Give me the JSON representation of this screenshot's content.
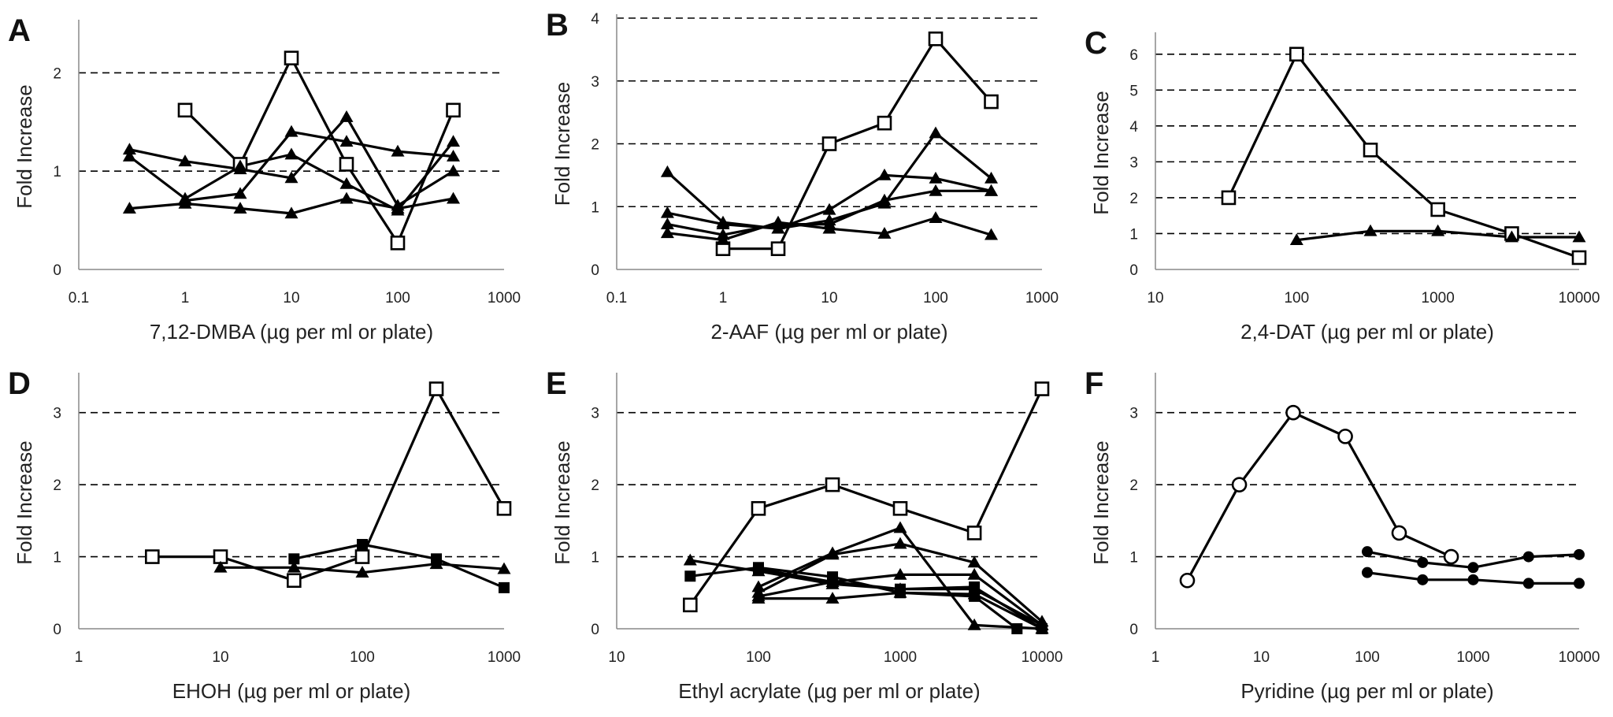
{
  "chart_data": [
    {
      "type": "line",
      "panel": "A",
      "xlabel": "7,12-DMBA (µg per ml or plate)",
      "ylabel": "Fold Increase",
      "xscale": "log",
      "xlim": [
        0.1,
        1000
      ],
      "ylim": [
        0,
        2.5
      ],
      "xticks": [
        0.1,
        1,
        10,
        100,
        1000
      ],
      "xtick_labels": [
        "0.1",
        "1",
        "10",
        "100",
        "1000"
      ],
      "yticks": [
        0,
        1,
        2
      ],
      "ytick_labels": [
        "0",
        "1",
        "2"
      ],
      "hlines": [
        1,
        2
      ],
      "series": [
        {
          "marker": "open-square",
          "x": [
            1,
            3.3,
            10,
            33,
            100,
            333
          ],
          "y": [
            1.62,
            1.07,
            2.15,
            1.07,
            0.27,
            1.62
          ]
        },
        {
          "marker": "triangle",
          "x": [
            0.3,
            1,
            3.3,
            10,
            33,
            100,
            333
          ],
          "y": [
            1.22,
            1.1,
            1.02,
            0.93,
            1.55,
            0.65,
            1.0
          ]
        },
        {
          "marker": "triangle",
          "x": [
            0.3,
            1,
            3.3,
            10,
            33,
            100,
            333
          ],
          "y": [
            1.15,
            0.72,
            1.05,
            1.17,
            0.87,
            0.6,
            1.3
          ]
        },
        {
          "marker": "triangle",
          "x": [
            1,
            3.3,
            10,
            33,
            100,
            333
          ],
          "y": [
            0.7,
            0.77,
            1.4,
            1.3,
            1.2,
            1.15
          ]
        },
        {
          "marker": "triangle",
          "x": [
            0.3,
            1,
            3.3,
            10,
            33,
            100,
            333
          ],
          "y": [
            0.62,
            0.67,
            0.62,
            0.57,
            0.72,
            0.62,
            0.72
          ]
        }
      ]
    },
    {
      "type": "line",
      "panel": "B",
      "xlabel": "2-AAF (µg per ml or plate)",
      "ylabel": "Fold Increase",
      "xscale": "log",
      "xlim": [
        0.1,
        1000
      ],
      "ylim": [
        0,
        4
      ],
      "xticks": [
        0.1,
        1,
        10,
        100,
        1000
      ],
      "xtick_labels": [
        "0.1",
        "1",
        "10",
        "100",
        "1000"
      ],
      "yticks": [
        0,
        1,
        2,
        3,
        4
      ],
      "ytick_labels": [
        "0",
        "1",
        "2",
        "3",
        "4"
      ],
      "hlines": [
        1,
        2,
        3,
        4
      ],
      "series": [
        {
          "marker": "open-square",
          "x": [
            1,
            3.3,
            10,
            33,
            100,
            333
          ],
          "y": [
            0.33,
            0.33,
            2.0,
            2.33,
            3.67,
            2.67
          ]
        },
        {
          "marker": "triangle",
          "x": [
            0.3,
            1,
            3.3,
            10,
            33,
            100,
            333
          ],
          "y": [
            1.55,
            0.75,
            0.65,
            0.78,
            1.05,
            2.17,
            1.45
          ]
        },
        {
          "marker": "triangle",
          "x": [
            0.3,
            1,
            3.3,
            10,
            33,
            100,
            333
          ],
          "y": [
            0.9,
            0.72,
            0.65,
            0.95,
            1.5,
            1.45,
            1.25
          ]
        },
        {
          "marker": "triangle",
          "x": [
            0.3,
            1,
            3.3,
            10,
            33,
            100,
            333
          ],
          "y": [
            0.72,
            0.55,
            0.72,
            0.72,
            1.1,
            1.25,
            1.25
          ]
        },
        {
          "marker": "triangle",
          "x": [
            0.3,
            1,
            3.3,
            10,
            33,
            100,
            333
          ],
          "y": [
            0.58,
            0.47,
            0.75,
            0.65,
            0.57,
            0.82,
            0.55
          ]
        }
      ]
    },
    {
      "type": "line",
      "panel": "C",
      "xlabel": "2,4-DAT (µg per ml or plate)",
      "ylabel": "Fold Increase",
      "xscale": "log",
      "xlim": [
        10,
        10000
      ],
      "ylim": [
        0,
        6.5
      ],
      "xticks": [
        10,
        100,
        1000,
        10000
      ],
      "xtick_labels": [
        "10",
        "100",
        "1000",
        "10000"
      ],
      "yticks": [
        0,
        1,
        2,
        3,
        4,
        5,
        6
      ],
      "ytick_labels": [
        "0",
        "1",
        "2",
        "3",
        "4",
        "5",
        "6"
      ],
      "hlines": [
        1,
        2,
        3,
        4,
        5,
        6
      ],
      "series": [
        {
          "marker": "open-square",
          "x": [
            33,
            100,
            333,
            1000,
            3333,
            10000
          ],
          "y": [
            2.0,
            6.0,
            3.33,
            1.67,
            1.0,
            0.33
          ]
        },
        {
          "marker": "triangle",
          "x": [
            100,
            333,
            1000,
            3333,
            10000
          ],
          "y": [
            0.82,
            1.07,
            1.07,
            0.9,
            0.9
          ]
        }
      ]
    },
    {
      "type": "line",
      "panel": "D",
      "xlabel": "EHOH (µg per ml or plate)",
      "ylabel": "Fold Increase",
      "xscale": "log",
      "xlim": [
        1,
        1000
      ],
      "ylim": [
        0,
        3.5
      ],
      "xticks": [
        1,
        10,
        100,
        1000
      ],
      "xtick_labels": [
        "1",
        "10",
        "100",
        "1000"
      ],
      "yticks": [
        0,
        1,
        2,
        3
      ],
      "ytick_labels": [
        "0",
        "1",
        "2",
        "3"
      ],
      "hlines": [
        1,
        2,
        3
      ],
      "series": [
        {
          "marker": "open-square",
          "x": [
            3.3,
            10,
            33,
            100,
            333,
            1000
          ],
          "y": [
            1.0,
            1.0,
            0.67,
            1.0,
            3.33,
            1.67
          ]
        },
        {
          "marker": "triangle",
          "x": [
            10,
            33,
            100,
            333,
            1000
          ],
          "y": [
            0.85,
            0.85,
            0.78,
            0.9,
            0.83
          ]
        },
        {
          "marker": "filled-square",
          "x": [
            33,
            100,
            333,
            1000
          ],
          "y": [
            0.97,
            1.17,
            0.97,
            0.57
          ]
        }
      ]
    },
    {
      "type": "line",
      "panel": "E",
      "xlabel": "Ethyl acrylate (µg per ml or plate)",
      "ylabel": "Fold Increase",
      "xscale": "log",
      "xlim": [
        10,
        10000
      ],
      "ylim": [
        0,
        3.5
      ],
      "xticks": [
        10,
        100,
        1000,
        10000
      ],
      "xtick_labels": [
        "10",
        "100",
        "1000",
        "10000"
      ],
      "yticks": [
        0,
        1,
        2,
        3
      ],
      "ytick_labels": [
        "0",
        "1",
        "2",
        "3"
      ],
      "hlines": [
        1,
        2,
        3
      ],
      "series": [
        {
          "marker": "open-square",
          "x": [
            33,
            100,
            333,
            1000,
            3333,
            10000
          ],
          "y": [
            0.33,
            1.67,
            2.0,
            1.67,
            1.33,
            3.33
          ]
        },
        {
          "marker": "triangle",
          "x": [
            33,
            100,
            333,
            1000,
            3333,
            10000
          ],
          "y": [
            0.95,
            0.8,
            0.62,
            0.55,
            0.55,
            0.05
          ]
        },
        {
          "marker": "triangle",
          "x": [
            100,
            333,
            1000,
            3333,
            10000
          ],
          "y": [
            0.58,
            1.05,
            1.4,
            0.05,
            0.0
          ]
        },
        {
          "marker": "triangle",
          "x": [
            100,
            333,
            1000,
            3333,
            10000
          ],
          "y": [
            0.5,
            1.03,
            1.18,
            0.92,
            0.1
          ]
        },
        {
          "marker": "triangle",
          "x": [
            100,
            333,
            1000,
            3333,
            10000
          ],
          "y": [
            0.45,
            0.65,
            0.75,
            0.75,
            0.05
          ]
        },
        {
          "marker": "triangle",
          "x": [
            100,
            333,
            1000,
            3333,
            10000
          ],
          "y": [
            0.42,
            0.42,
            0.5,
            0.48,
            0.0
          ]
        },
        {
          "marker": "filled-square",
          "x": [
            33,
            100,
            333,
            1000,
            3333,
            6666
          ],
          "y": [
            0.73,
            0.85,
            0.72,
            0.5,
            0.45,
            0.0
          ]
        },
        {
          "marker": "filled-square",
          "x": [
            100,
            333,
            1000,
            3333,
            10000
          ],
          "y": [
            0.83,
            0.65,
            0.55,
            0.58,
            0.0
          ]
        }
      ]
    },
    {
      "type": "line",
      "panel": "F",
      "xlabel": "Pyridine (µg per ml or plate)",
      "ylabel": "Fold Increase",
      "xscale": "log",
      "xlim": [
        1,
        10000
      ],
      "ylim": [
        0,
        3.5
      ],
      "xticks": [
        1,
        10,
        100,
        1000,
        10000
      ],
      "xtick_labels": [
        "1",
        "10",
        "100",
        "1000",
        "10000"
      ],
      "yticks": [
        0,
        1,
        2,
        3
      ],
      "ytick_labels": [
        "0",
        "1",
        "2",
        "3"
      ],
      "hlines": [
        1,
        2,
        3
      ],
      "series": [
        {
          "marker": "open-circle",
          "x": [
            2,
            6.2,
            20,
            62,
            200,
            620
          ],
          "y": [
            0.67,
            2.0,
            3.0,
            2.67,
            1.33,
            1.0
          ]
        },
        {
          "marker": "filled-circle",
          "x": [
            100,
            333,
            1000,
            3333,
            10000
          ],
          "y": [
            1.07,
            0.92,
            0.85,
            1.0,
            1.03
          ]
        },
        {
          "marker": "filled-circle",
          "x": [
            100,
            333,
            1000,
            3333,
            10000
          ],
          "y": [
            0.78,
            0.68,
            0.68,
            0.63,
            0.63
          ]
        }
      ]
    }
  ]
}
